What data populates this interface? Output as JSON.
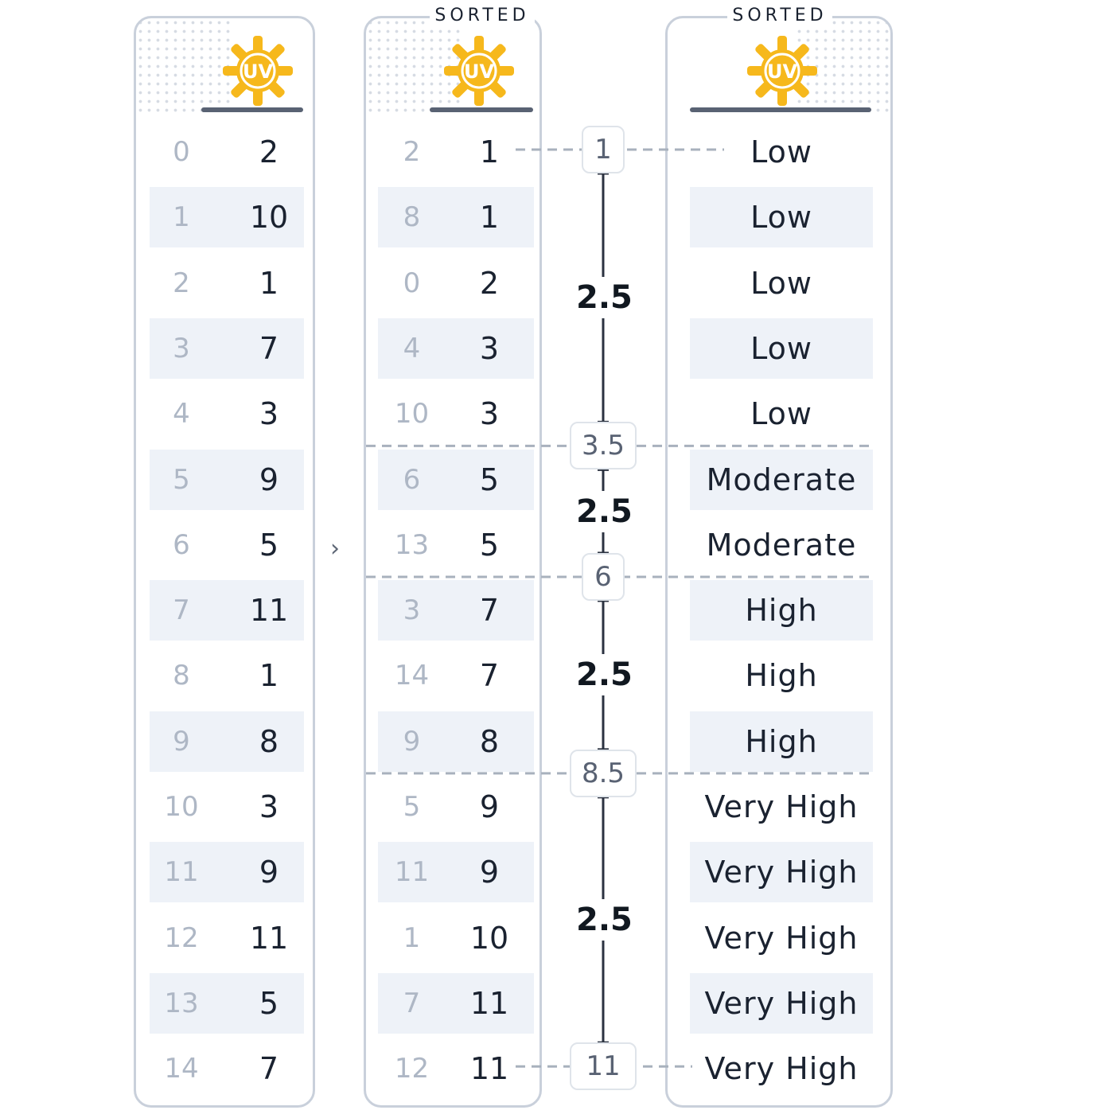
{
  "headers": {
    "sorted_tag_2": "SORTED",
    "sorted_tag_3": "SORTED",
    "uv_icon_label": "UV"
  },
  "colors": {
    "sun_yellow": "#f6b81c",
    "panel_border": "#c9d0db",
    "alt_row": "#eef2f8",
    "dark_text": "#1a2230",
    "index_text": "#aeb7c5",
    "dash_line": "#a8b1bd"
  },
  "icons": {
    "arrow": "chevron-right-icon",
    "header": "uv-sun-icon"
  },
  "original": {
    "indices": [
      "0",
      "1",
      "2",
      "3",
      "4",
      "5",
      "6",
      "7",
      "8",
      "9",
      "10",
      "11",
      "12",
      "13",
      "14"
    ],
    "values": [
      "2",
      "10",
      "1",
      "7",
      "3",
      "9",
      "5",
      "11",
      "1",
      "8",
      "3",
      "9",
      "11",
      "5",
      "7"
    ]
  },
  "sorted": {
    "indices": [
      "2",
      "8",
      "0",
      "4",
      "10",
      "6",
      "13",
      "3",
      "14",
      "9",
      "5",
      "11",
      "1",
      "7",
      "12"
    ],
    "values": [
      "1",
      "1",
      "2",
      "3",
      "3",
      "5",
      "5",
      "7",
      "7",
      "8",
      "9",
      "9",
      "10",
      "11",
      "11"
    ]
  },
  "categories": [
    "Low",
    "Low",
    "Low",
    "Low",
    "Low",
    "Moderate",
    "Moderate",
    "High",
    "High",
    "High",
    "Very High",
    "Very High",
    "Very High",
    "Very High",
    "Very High"
  ],
  "arrow_glyph": "›",
  "breakpoints": [
    "1",
    "3.5",
    "6",
    "8.5",
    "11"
  ],
  "widths": [
    "2.5",
    "2.5",
    "2.5",
    "2.5"
  ]
}
